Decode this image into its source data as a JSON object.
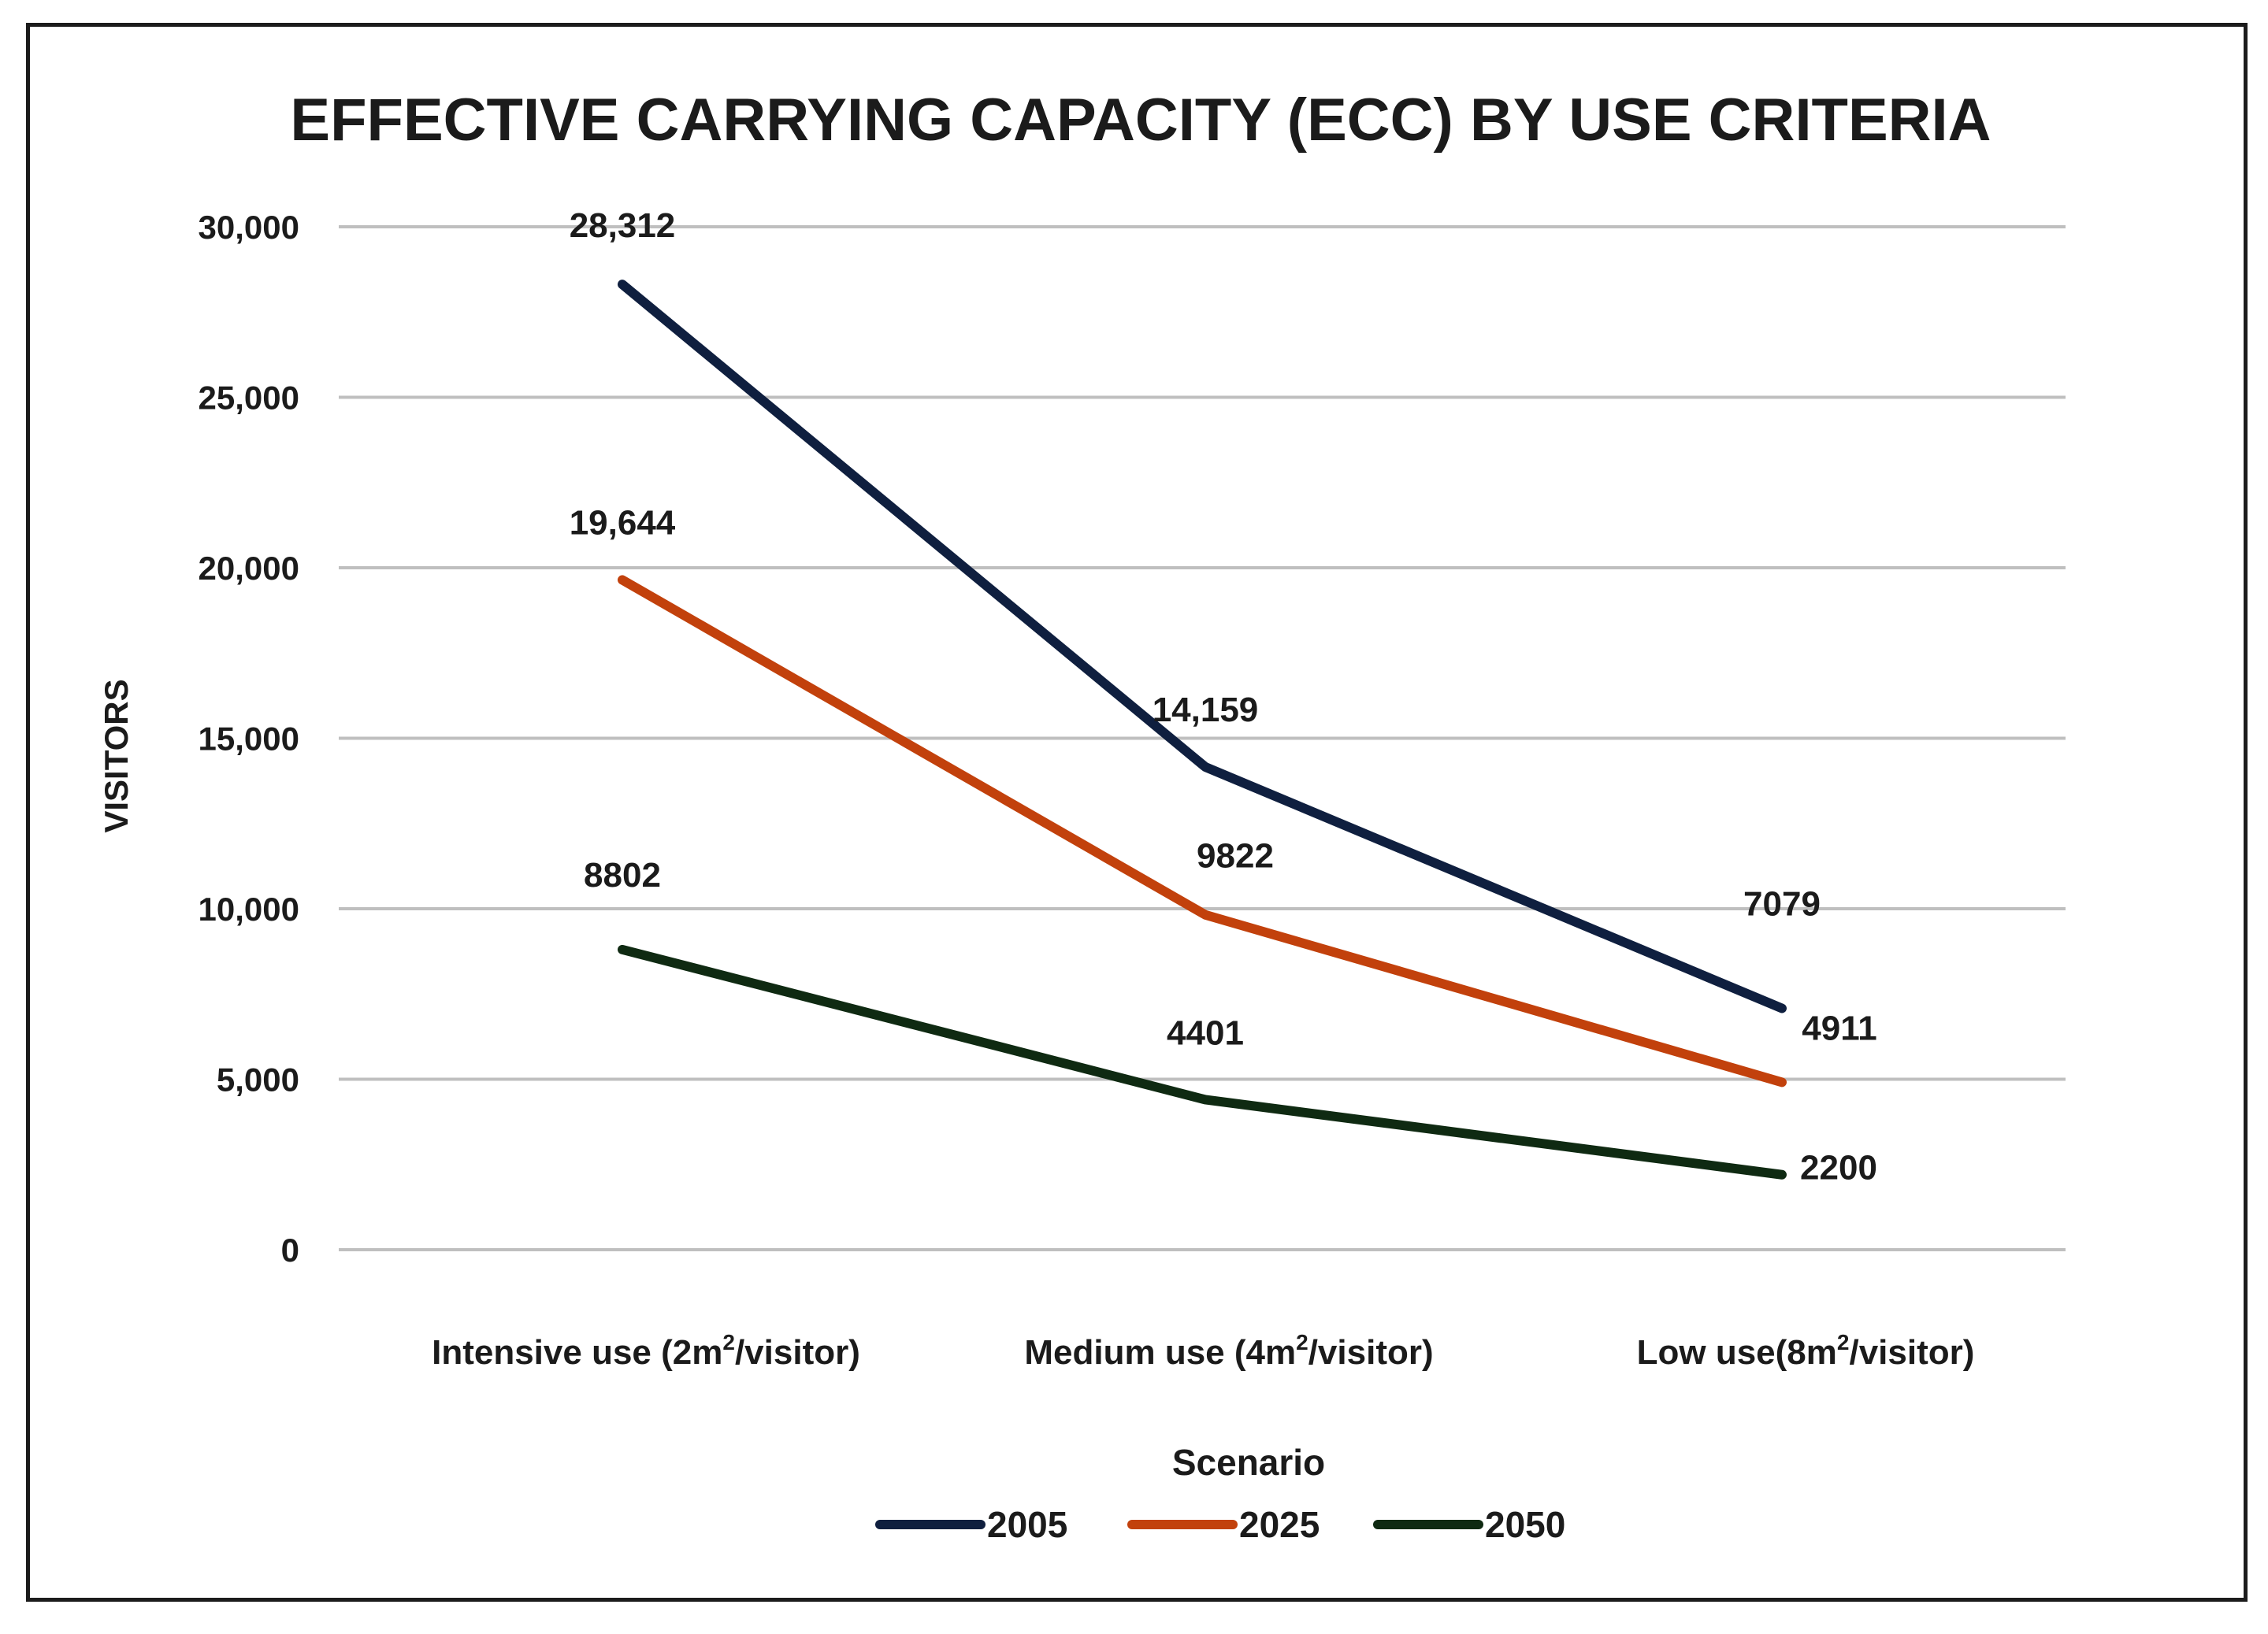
{
  "chart_data": {
    "type": "line",
    "title": "EFFECTIVE CARRYING CAPACITY (ECC) BY USE CRITERIA",
    "ylabel": "VISITORS",
    "xlabel": "",
    "ylim": [
      0,
      30000
    ],
    "yticks": [
      0,
      5000,
      10000,
      15000,
      20000,
      25000,
      30000
    ],
    "ytick_labels": [
      "0",
      "5,000",
      "10,000",
      "15,000",
      "20,000",
      "25,000",
      "30,000"
    ],
    "grid": true,
    "categories": [
      {
        "pre": "Intensive use (2m",
        "sup": "2",
        "post": "/visitor)"
      },
      {
        "pre": "Medium use (4m",
        "sup": "2",
        "post": "/visitor)"
      },
      {
        "pre": "Low use(8m",
        "sup": "2",
        "post": "/visitor)"
      }
    ],
    "legend_title": "Scenario",
    "legend_position": "bottom-center",
    "series": [
      {
        "name": "2005",
        "color": "#0f1f3f",
        "values": [
          28312,
          14159,
          7079
        ],
        "labels": [
          "28,312",
          "14,159",
          "7079"
        ]
      },
      {
        "name": "2025",
        "color": "#c2410c",
        "values": [
          19644,
          9822,
          4911
        ],
        "labels": [
          "19,644",
          "9822",
          "4911"
        ]
      },
      {
        "name": "2050",
        "color": "#0f2a12",
        "values": [
          8802,
          4401,
          2200
        ],
        "labels": [
          "8802",
          "4401",
          "2200"
        ]
      }
    ]
  }
}
